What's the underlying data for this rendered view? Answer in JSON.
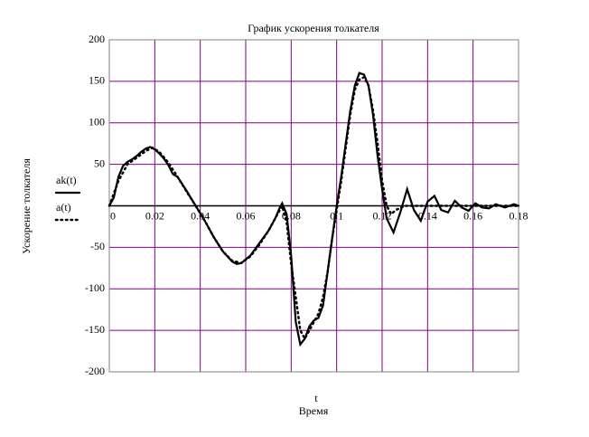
{
  "chart_data": {
    "type": "line",
    "title": "График ускорения толкателя",
    "ylabel": "Ускорение толкателя",
    "xlabel": "t",
    "xlabel_sub": "Время",
    "xlim": [
      0,
      0.18
    ],
    "ylim": [
      -200,
      200
    ],
    "xticks": [
      0,
      0.02,
      0.04,
      0.06,
      0.08,
      0.1,
      0.12,
      0.14,
      0.16,
      0.18
    ],
    "yticks": [
      200,
      150,
      100,
      50,
      -50,
      -100,
      -150,
      -200
    ],
    "grid": true,
    "grid_color": "#800080",
    "series": [
      {
        "name": "ak(t)",
        "color": "#000000",
        "style": "solid",
        "x": [
          0,
          0.002,
          0.004,
          0.006,
          0.008,
          0.01,
          0.012,
          0.014,
          0.016,
          0.018,
          0.02,
          0.022,
          0.024,
          0.026,
          0.028,
          0.03,
          0.034,
          0.038,
          0.042,
          0.046,
          0.05,
          0.054,
          0.056,
          0.058,
          0.062,
          0.066,
          0.07,
          0.073,
          0.075,
          0.076,
          0.078,
          0.08,
          0.082,
          0.084,
          0.086,
          0.088,
          0.09,
          0.092,
          0.094,
          0.096,
          0.098,
          0.1,
          0.102,
          0.104,
          0.106,
          0.108,
          0.11,
          0.112,
          0.114,
          0.116,
          0.118,
          0.12,
          0.122,
          0.125,
          0.128,
          0.131,
          0.134,
          0.137,
          0.14,
          0.143,
          0.146,
          0.149,
          0.152,
          0.155,
          0.158,
          0.161,
          0.164,
          0.167,
          0.17,
          0.174,
          0.178,
          0.18
        ],
        "values": [
          0,
          10,
          35,
          48,
          53,
          56,
          60,
          65,
          69,
          71,
          68,
          63,
          57,
          49,
          38,
          35,
          18,
          0,
          -18,
          -38,
          -55,
          -67,
          -70,
          -69,
          -60,
          -45,
          -30,
          -15,
          -2,
          3,
          -10,
          -60,
          -140,
          -167,
          -160,
          -145,
          -138,
          -135,
          -120,
          -80,
          -40,
          0,
          35,
          75,
          115,
          145,
          160,
          158,
          145,
          110,
          60,
          20,
          -15,
          -32,
          -8,
          20,
          -5,
          -18,
          5,
          12,
          -5,
          -8,
          6,
          -2,
          -6,
          3,
          -2,
          -3,
          2,
          -2,
          2,
          0
        ]
      },
      {
        "name": "a(t)",
        "color": "#000000",
        "style": "dotted",
        "x": [
          0,
          0.004,
          0.008,
          0.012,
          0.016,
          0.019,
          0.022,
          0.026,
          0.03,
          0.034,
          0.038,
          0.042,
          0.046,
          0.05,
          0.054,
          0.058,
          0.062,
          0.066,
          0.07,
          0.074,
          0.076,
          0.078,
          0.08,
          0.082,
          0.084,
          0.086,
          0.088,
          0.09,
          0.092,
          0.094,
          0.096,
          0.098,
          0.1,
          0.102,
          0.104,
          0.106,
          0.108,
          0.11,
          0.112,
          0.114,
          0.116,
          0.118,
          0.12,
          0.122,
          0.124,
          0.126,
          0.13,
          0.18
        ],
        "values": [
          0,
          30,
          50,
          58,
          66,
          70,
          65,
          52,
          35,
          17,
          0,
          -18,
          -38,
          -55,
          -66,
          -69,
          -61,
          -47,
          -30,
          -10,
          0,
          -20,
          -70,
          -110,
          -150,
          -160,
          -150,
          -140,
          -130,
          -110,
          -80,
          -40,
          -5,
          30,
          70,
          110,
          140,
          152,
          155,
          145,
          115,
          75,
          30,
          0,
          -10,
          -5,
          0,
          0
        ]
      }
    ]
  }
}
